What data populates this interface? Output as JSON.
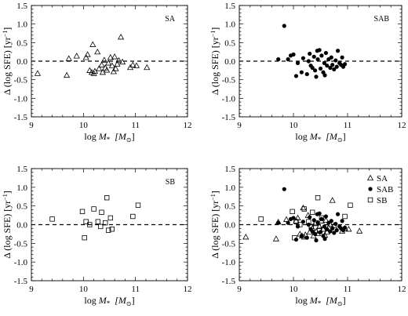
{
  "chart_data": [
    {
      "type": "scatter",
      "panel_label": "SA",
      "xlabel": {
        "prefix": "log ",
        "var": "M",
        "sub": "*",
        "unit": "[M",
        "unit_sub": "⊙",
        "unit_end": "]"
      },
      "ylabel": "Δ (log SFE)  [yr",
      "ylabel_sup": "−1",
      "ylabel_end": "]",
      "xlim": [
        9,
        12
      ],
      "ylim": [
        -1.5,
        1.5
      ],
      "xticks": [
        "9",
        "10",
        "11",
        "12"
      ],
      "yticks": [
        "-1.5",
        "-1.0",
        "-0.5",
        "0.0",
        "0.5",
        "1.0",
        "1.5"
      ],
      "reference_line": 0,
      "marker": "triangle",
      "points": [
        [
          9.12,
          -0.33
        ],
        [
          9.68,
          -0.38
        ],
        [
          9.72,
          0.07
        ],
        [
          9.87,
          0.14
        ],
        [
          10.05,
          0.1
        ],
        [
          10.08,
          0.18
        ],
        [
          10.12,
          -0.25
        ],
        [
          10.16,
          -0.3
        ],
        [
          10.18,
          0.45
        ],
        [
          10.2,
          -0.33
        ],
        [
          10.22,
          -0.27
        ],
        [
          10.27,
          0.25
        ],
        [
          10.3,
          -0.2
        ],
        [
          10.35,
          -0.1
        ],
        [
          10.37,
          -0.3
        ],
        [
          10.4,
          0.03
        ],
        [
          10.42,
          -0.18
        ],
        [
          10.45,
          -0.24
        ],
        [
          10.48,
          -0.05
        ],
        [
          10.52,
          0.1
        ],
        [
          10.55,
          -0.12
        ],
        [
          10.58,
          -0.28
        ],
        [
          10.6,
          0.12
        ],
        [
          10.62,
          -0.2
        ],
        [
          10.65,
          -0.08
        ],
        [
          10.68,
          0.02
        ],
        [
          10.72,
          0.65
        ],
        [
          10.75,
          -0.02
        ],
        [
          10.9,
          -0.17
        ],
        [
          10.95,
          -0.1
        ],
        [
          11.02,
          -0.12
        ],
        [
          11.22,
          -0.17
        ]
      ]
    },
    {
      "type": "scatter",
      "panel_label": "SAB",
      "xlabel": {
        "prefix": "log ",
        "var": "M",
        "sub": "*",
        "unit": "[M",
        "unit_sub": "⊙",
        "unit_end": "]"
      },
      "ylabel": "Δ (log SFE)  [yr",
      "ylabel_sup": "−1",
      "ylabel_end": "]",
      "xlim": [
        9,
        12
      ],
      "ylim": [
        -1.5,
        1.5
      ],
      "xticks": [
        "9",
        "10",
        "11",
        "12"
      ],
      "yticks": [
        "-1.5",
        "-1.0",
        "-0.5",
        "0.0",
        "0.5",
        "1.0",
        "1.5"
      ],
      "reference_line": 0,
      "marker": "circle",
      "points": [
        [
          9.72,
          0.05
        ],
        [
          9.83,
          0.95
        ],
        [
          9.9,
          0.05
        ],
        [
          9.95,
          0.15
        ],
        [
          10.0,
          0.18
        ],
        [
          10.05,
          -0.4
        ],
        [
          10.08,
          -0.05
        ],
        [
          10.15,
          -0.3
        ],
        [
          10.18,
          0.08
        ],
        [
          10.25,
          -0.35
        ],
        [
          10.28,
          0.0
        ],
        [
          10.32,
          -0.12
        ],
        [
          10.35,
          -0.18
        ],
        [
          10.38,
          0.12
        ],
        [
          10.4,
          -0.25
        ],
        [
          10.42,
          -0.42
        ],
        [
          10.45,
          0.05
        ],
        [
          10.48,
          0.3
        ],
        [
          10.5,
          -0.2
        ],
        [
          10.52,
          0.15
        ],
        [
          10.55,
          -0.3
        ],
        [
          10.57,
          -0.05
        ],
        [
          10.6,
          0.22
        ],
        [
          10.62,
          -0.12
        ],
        [
          10.65,
          0.05
        ],
        [
          10.68,
          -0.18
        ],
        [
          10.7,
          0.1
        ],
        [
          10.72,
          -0.1
        ],
        [
          10.75,
          -0.22
        ],
        [
          10.78,
          0.02
        ],
        [
          10.8,
          -0.15
        ],
        [
          10.82,
          0.28
        ],
        [
          10.85,
          -0.05
        ],
        [
          10.88,
          -0.1
        ],
        [
          10.9,
          0.1
        ],
        [
          10.92,
          -0.15
        ],
        [
          10.95,
          -0.08
        ],
        [
          10.58,
          -0.38
        ],
        [
          10.3,
          0.2
        ],
        [
          10.44,
          0.28
        ]
      ]
    },
    {
      "type": "scatter",
      "panel_label": "SB",
      "xlabel": {
        "prefix": "log ",
        "var": "M",
        "sub": "*",
        "unit": "[M",
        "unit_sub": "⊙",
        "unit_end": "]"
      },
      "ylabel": "Δ (log SFE)  [yr",
      "ylabel_sup": "−1",
      "ylabel_end": "]",
      "xlim": [
        9,
        12
      ],
      "ylim": [
        -1.5,
        1.5
      ],
      "xticks": [
        "9",
        "10",
        "11",
        "12"
      ],
      "yticks": [
        "-1.5",
        "-1.0",
        "-0.5",
        "0.0",
        "0.5",
        "1.0",
        "1.5"
      ],
      "reference_line": 0,
      "marker": "square",
      "points": [
        [
          9.4,
          0.15
        ],
        [
          9.98,
          0.35
        ],
        [
          10.02,
          -0.35
        ],
        [
          10.05,
          0.08
        ],
        [
          10.12,
          0.0
        ],
        [
          10.2,
          0.42
        ],
        [
          10.28,
          0.08
        ],
        [
          10.33,
          -0.05
        ],
        [
          10.35,
          0.33
        ],
        [
          10.42,
          0.05
        ],
        [
          10.45,
          0.72
        ],
        [
          10.48,
          -0.15
        ],
        [
          10.52,
          0.18
        ],
        [
          10.55,
          -0.12
        ],
        [
          10.95,
          0.22
        ],
        [
          11.05,
          0.52
        ]
      ]
    },
    {
      "type": "scatter",
      "panel_label": "",
      "xlabel": {
        "prefix": "log ",
        "var": "M",
        "sub": "*",
        "unit": "[M",
        "unit_sub": "⊙",
        "unit_end": "]"
      },
      "ylabel": "Δ (log SFE)  [yr",
      "ylabel_sup": "−1",
      "ylabel_end": "]",
      "xlim": [
        9,
        12
      ],
      "ylim": [
        -1.5,
        1.5
      ],
      "xticks": [
        "9",
        "10",
        "11",
        "12"
      ],
      "yticks": [
        "-1.5",
        "-1.0",
        "-0.5",
        "0.0",
        "0.5",
        "1.0",
        "1.5"
      ],
      "reference_line": 0,
      "legend_position": "top-right",
      "legend": [
        {
          "label": "SA",
          "marker": "triangle"
        },
        {
          "label": "SAB",
          "marker": "circle"
        },
        {
          "label": "SB",
          "marker": "square"
        }
      ],
      "combined_from_panels": [
        0,
        1,
        2
      ]
    }
  ]
}
